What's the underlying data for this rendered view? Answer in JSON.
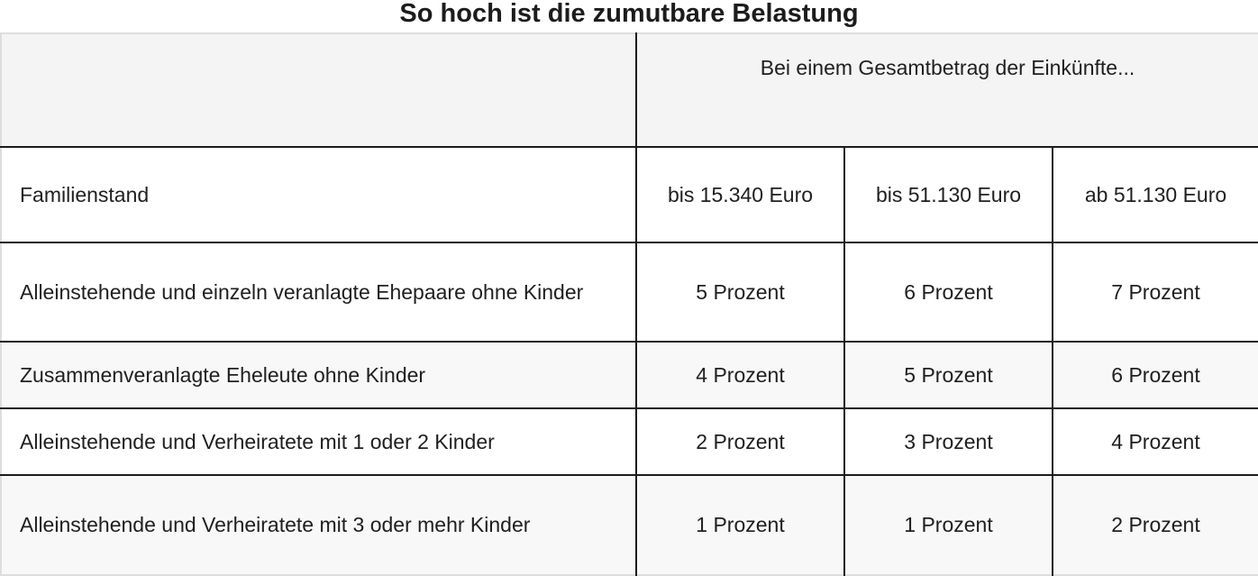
{
  "title": "So hoch ist die zumutbare Belastung",
  "table": {
    "super_header": "Bei einem Gesamtbetrag der Einkünfte...",
    "columns": [
      "Familienstand",
      "bis 15.340 Euro",
      "bis 51.130 Euro",
      "ab 51.130 Euro"
    ],
    "rows": [
      [
        "Alleinstehende und einzeln veranlagte Ehepaare ohne Kinder",
        "5 Prozent",
        "6 Prozent",
        "7 Prozent"
      ],
      [
        "Zusammenveranlagte Eheleute ohne Kinder",
        "4 Prozent",
        "5 Prozent",
        "6 Prozent"
      ],
      [
        "Alleinstehende und Verheiratete mit 1 oder 2 Kinder",
        "2 Prozent",
        "3 Prozent",
        "4 Prozent"
      ],
      [
        "Alleinstehende und Verheiratete mit 3 oder mehr Kinder",
        "1 Prozent",
        "1 Prozent",
        "2 Prozent"
      ]
    ]
  }
}
